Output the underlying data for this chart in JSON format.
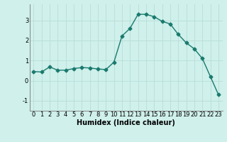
{
  "x": [
    0,
    1,
    2,
    3,
    4,
    5,
    6,
    7,
    8,
    9,
    10,
    11,
    12,
    13,
    14,
    15,
    16,
    17,
    18,
    19,
    20,
    21,
    22,
    23
  ],
  "y": [
    0.45,
    0.43,
    0.68,
    0.52,
    0.52,
    0.6,
    0.65,
    0.63,
    0.58,
    0.55,
    0.92,
    2.22,
    2.6,
    3.3,
    3.3,
    3.18,
    2.95,
    2.82,
    2.3,
    1.88,
    1.58,
    1.1,
    0.2,
    -0.7
  ],
  "line_color": "#1a7a6e",
  "marker": "D",
  "markersize": 2.5,
  "linewidth": 1.0,
  "bg_color": "#cff0eb",
  "grid_color": "#b8ddd8",
  "xlabel": "Humidex (Indice chaleur)",
  "xlabel_fontsize": 7,
  "tick_fontsize": 6,
  "yticks": [
    -1,
    0,
    1,
    2,
    3
  ],
  "xtick_labels": [
    "0",
    "1",
    "2",
    "3",
    "4",
    "5",
    "6",
    "7",
    "8",
    "9",
    "10",
    "11",
    "12",
    "13",
    "14",
    "15",
    "16",
    "17",
    "18",
    "19",
    "20",
    "21",
    "22",
    "23"
  ],
  "xlim": [
    -0.5,
    23.5
  ],
  "ylim": [
    -1.5,
    3.8
  ]
}
